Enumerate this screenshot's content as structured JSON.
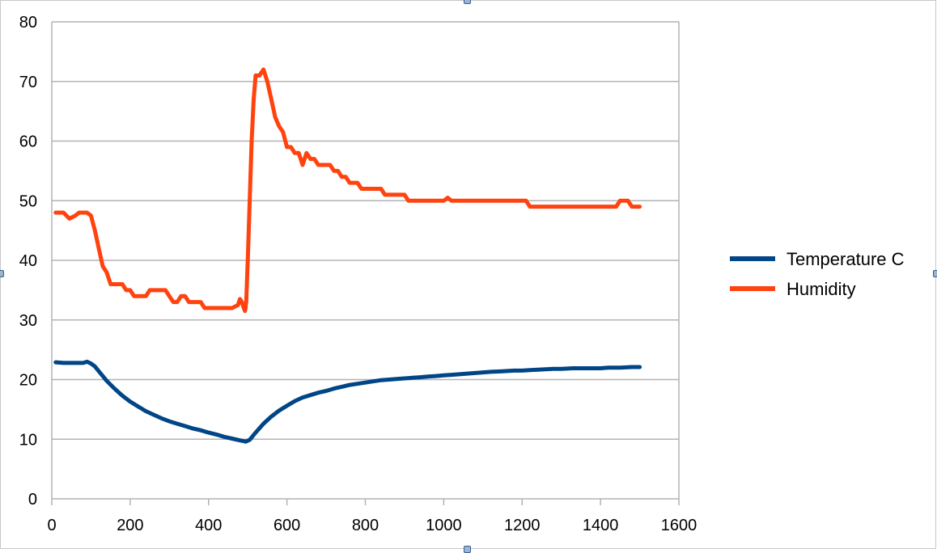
{
  "chart_data": {
    "type": "line",
    "title": "",
    "xlabel": "",
    "ylabel": "",
    "xlim": [
      0,
      1600
    ],
    "ylim": [
      0,
      80
    ],
    "x_ticks": [
      0,
      200,
      400,
      600,
      800,
      1000,
      1200,
      1400,
      1600
    ],
    "y_ticks": [
      0,
      10,
      20,
      30,
      40,
      50,
      60,
      70,
      80
    ],
    "grid": "horizontal",
    "legend_position": "right",
    "series": [
      {
        "name": "Temperature C",
        "color": "#004586",
        "points": [
          [
            10,
            22.9
          ],
          [
            30,
            22.8
          ],
          [
            60,
            22.8
          ],
          [
            80,
            22.8
          ],
          [
            90,
            23.0
          ],
          [
            100,
            22.7
          ],
          [
            110,
            22.2
          ],
          [
            125,
            21.0
          ],
          [
            140,
            19.8
          ],
          [
            160,
            18.5
          ],
          [
            180,
            17.3
          ],
          [
            200,
            16.3
          ],
          [
            220,
            15.5
          ],
          [
            240,
            14.7
          ],
          [
            260,
            14.1
          ],
          [
            280,
            13.5
          ],
          [
            300,
            13.0
          ],
          [
            320,
            12.6
          ],
          [
            340,
            12.2
          ],
          [
            360,
            11.8
          ],
          [
            380,
            11.5
          ],
          [
            400,
            11.1
          ],
          [
            420,
            10.8
          ],
          [
            440,
            10.4
          ],
          [
            460,
            10.1
          ],
          [
            480,
            9.8
          ],
          [
            495,
            9.6
          ],
          [
            505,
            9.9
          ],
          [
            520,
            11.1
          ],
          [
            540,
            12.6
          ],
          [
            560,
            13.8
          ],
          [
            580,
            14.8
          ],
          [
            600,
            15.6
          ],
          [
            620,
            16.4
          ],
          [
            640,
            17.0
          ],
          [
            660,
            17.4
          ],
          [
            680,
            17.8
          ],
          [
            700,
            18.1
          ],
          [
            720,
            18.5
          ],
          [
            740,
            18.8
          ],
          [
            760,
            19.1
          ],
          [
            780,
            19.3
          ],
          [
            800,
            19.5
          ],
          [
            820,
            19.7
          ],
          [
            840,
            19.9
          ],
          [
            860,
            20.0
          ],
          [
            880,
            20.1
          ],
          [
            900,
            20.2
          ],
          [
            920,
            20.3
          ],
          [
            940,
            20.4
          ],
          [
            960,
            20.5
          ],
          [
            980,
            20.6
          ],
          [
            1000,
            20.7
          ],
          [
            1020,
            20.8
          ],
          [
            1040,
            20.9
          ],
          [
            1060,
            21.0
          ],
          [
            1080,
            21.1
          ],
          [
            1100,
            21.2
          ],
          [
            1120,
            21.3
          ],
          [
            1150,
            21.4
          ],
          [
            1180,
            21.5
          ],
          [
            1200,
            21.5
          ],
          [
            1220,
            21.6
          ],
          [
            1250,
            21.7
          ],
          [
            1280,
            21.8
          ],
          [
            1300,
            21.8
          ],
          [
            1330,
            21.9
          ],
          [
            1360,
            21.9
          ],
          [
            1400,
            21.9
          ],
          [
            1420,
            22.0
          ],
          [
            1450,
            22.0
          ],
          [
            1480,
            22.1
          ],
          [
            1500,
            22.1
          ]
        ]
      },
      {
        "name": "Humidity",
        "color": "#ff420e",
        "points": [
          [
            10,
            48
          ],
          [
            30,
            48
          ],
          [
            45,
            47
          ],
          [
            60,
            47.5
          ],
          [
            70,
            48
          ],
          [
            90,
            48
          ],
          [
            100,
            47.5
          ],
          [
            110,
            45
          ],
          [
            120,
            42
          ],
          [
            130,
            39
          ],
          [
            140,
            38
          ],
          [
            150,
            36
          ],
          [
            170,
            36
          ],
          [
            180,
            36
          ],
          [
            190,
            35
          ],
          [
            200,
            35
          ],
          [
            210,
            34
          ],
          [
            220,
            34
          ],
          [
            240,
            34
          ],
          [
            250,
            35
          ],
          [
            270,
            35
          ],
          [
            290,
            35
          ],
          [
            300,
            34
          ],
          [
            310,
            33
          ],
          [
            320,
            33
          ],
          [
            330,
            34
          ],
          [
            340,
            34
          ],
          [
            350,
            33
          ],
          [
            380,
            33
          ],
          [
            390,
            32
          ],
          [
            430,
            32
          ],
          [
            460,
            32
          ],
          [
            475,
            32.5
          ],
          [
            480,
            33.5
          ],
          [
            485,
            33
          ],
          [
            490,
            32
          ],
          [
            493,
            31.5
          ],
          [
            496,
            33
          ],
          [
            500,
            40
          ],
          [
            505,
            50
          ],
          [
            510,
            60
          ],
          [
            515,
            67
          ],
          [
            520,
            71
          ],
          [
            530,
            71
          ],
          [
            535,
            71.5
          ],
          [
            540,
            72
          ],
          [
            545,
            71
          ],
          [
            550,
            70
          ],
          [
            560,
            67
          ],
          [
            570,
            64
          ],
          [
            580,
            62.5
          ],
          [
            590,
            61.5
          ],
          [
            600,
            59
          ],
          [
            610,
            59
          ],
          [
            620,
            58
          ],
          [
            630,
            58
          ],
          [
            640,
            56
          ],
          [
            650,
            58
          ],
          [
            660,
            57
          ],
          [
            670,
            57
          ],
          [
            680,
            56
          ],
          [
            700,
            56
          ],
          [
            710,
            56
          ],
          [
            720,
            55
          ],
          [
            730,
            55
          ],
          [
            740,
            54
          ],
          [
            750,
            54
          ],
          [
            760,
            53
          ],
          [
            780,
            53
          ],
          [
            790,
            52
          ],
          [
            820,
            52
          ],
          [
            840,
            52
          ],
          [
            850,
            51
          ],
          [
            880,
            51
          ],
          [
            900,
            51
          ],
          [
            910,
            50
          ],
          [
            1000,
            50
          ],
          [
            1010,
            50.5
          ],
          [
            1020,
            50
          ],
          [
            1060,
            50
          ],
          [
            1100,
            50
          ],
          [
            1200,
            50
          ],
          [
            1210,
            50
          ],
          [
            1220,
            49
          ],
          [
            1300,
            49
          ],
          [
            1400,
            49
          ],
          [
            1440,
            49
          ],
          [
            1450,
            50
          ],
          [
            1470,
            50
          ],
          [
            1480,
            49
          ],
          [
            1500,
            49
          ]
        ]
      }
    ]
  }
}
